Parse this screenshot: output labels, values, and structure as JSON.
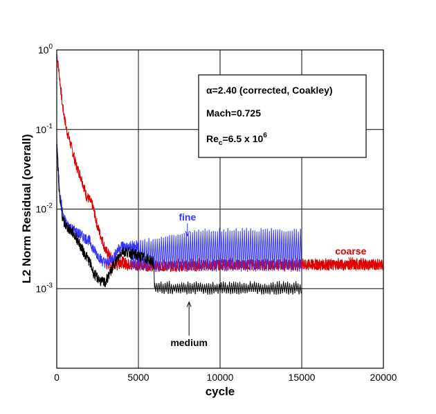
{
  "chart_data": {
    "type": "line",
    "xlabel": "cycle",
    "ylabel": "L2 Norm Residual (overall)",
    "xlim": [
      0,
      20000
    ],
    "ylim": [
      0.0001,
      1
    ],
    "yscale": "log",
    "grid": true,
    "x_ticks": [
      "0",
      "5000",
      "10000",
      "15000",
      "20000"
    ],
    "y_ticks": [
      {
        "value": 1,
        "base": "10",
        "exp": "0"
      },
      {
        "value": 0.1,
        "base": "10",
        "exp": "-1"
      },
      {
        "value": 0.01,
        "base": "10",
        "exp": "-2"
      },
      {
        "value": 0.001,
        "base": "10",
        "exp": "-3"
      }
    ],
    "info_box": {
      "alpha": "α=2.40 (corrected, Coakley)",
      "mach": "Mach=0.725",
      "re_main": "Re",
      "re_sub": "c",
      "re_value": "=6.5 x 10",
      "re_exp": "6"
    },
    "series": [
      {
        "name": "coarse",
        "color": "#dd0000",
        "label_at": [
          18000,
          0.0027
        ],
        "arrow_to": [
          18000,
          0.00215
        ],
        "x": [
          0,
          150,
          350,
          600,
          900,
          1200,
          1500,
          1800,
          2000,
          2200,
          2500,
          2800,
          3000,
          3300,
          3600,
          4000,
          4500,
          5000,
          6000,
          8000,
          10000,
          12000,
          14000,
          16000,
          18000,
          20000
        ],
        "y": [
          0.9,
          0.5,
          0.2,
          0.1,
          0.06,
          0.035,
          0.025,
          0.015,
          0.013,
          0.011,
          0.006,
          0.004,
          0.003,
          0.0025,
          0.0022,
          0.0022,
          0.002,
          0.002,
          0.0019,
          0.0019,
          0.002,
          0.002,
          0.002,
          0.002,
          0.002,
          0.002
        ],
        "band": [
          {
            "x0": 3000,
            "x1": 20000,
            "lo": 0.00175,
            "hi": 0.0023
          }
        ]
      },
      {
        "name": "fine",
        "color": "#3333ff",
        "label_at": [
          8000,
          0.0072
        ],
        "arrow_to": [
          8000,
          0.0046
        ],
        "x": [
          0,
          100,
          200,
          400,
          600,
          800,
          1000,
          1300,
          1600,
          2000,
          2300,
          2600,
          2800,
          3000,
          3200,
          3500,
          3700,
          4000,
          4300,
          4600,
          5000
        ],
        "y": [
          0.08,
          0.03,
          0.015,
          0.008,
          0.0065,
          0.006,
          0.0055,
          0.005,
          0.0045,
          0.004,
          0.003,
          0.0025,
          0.0022,
          0.0021,
          0.0022,
          0.0025,
          0.003,
          0.0035,
          0.0033,
          0.0032,
          0.0034
        ],
        "band": [
          {
            "x0": 4500,
            "x1": 15000,
            "lo": 0.0017,
            "hi": [
              0.0038,
              0.0055
            ]
          }
        ]
      },
      {
        "name": "medium",
        "color": "#000000",
        "label_at": [
          8100,
          0.00019
        ],
        "arrow_to": [
          8100,
          0.00068
        ],
        "x": [
          0,
          100,
          200,
          400,
          600,
          800,
          1000,
          1300,
          1600,
          2000,
          2300,
          2600,
          2800,
          3000,
          3200,
          3500,
          3800,
          4000,
          4500,
          5000,
          5500,
          5900,
          6000
        ],
        "y": [
          0.07,
          0.025,
          0.012,
          0.007,
          0.006,
          0.0055,
          0.005,
          0.004,
          0.003,
          0.0022,
          0.0015,
          0.0013,
          0.0012,
          0.0012,
          0.0015,
          0.002,
          0.0025,
          0.003,
          0.0028,
          0.0026,
          0.0024,
          0.0022,
          0.0011
        ],
        "band": [
          {
            "x0": 6000,
            "x1": 15000,
            "lo": 0.00088,
            "hi": 0.00118
          }
        ]
      }
    ]
  }
}
